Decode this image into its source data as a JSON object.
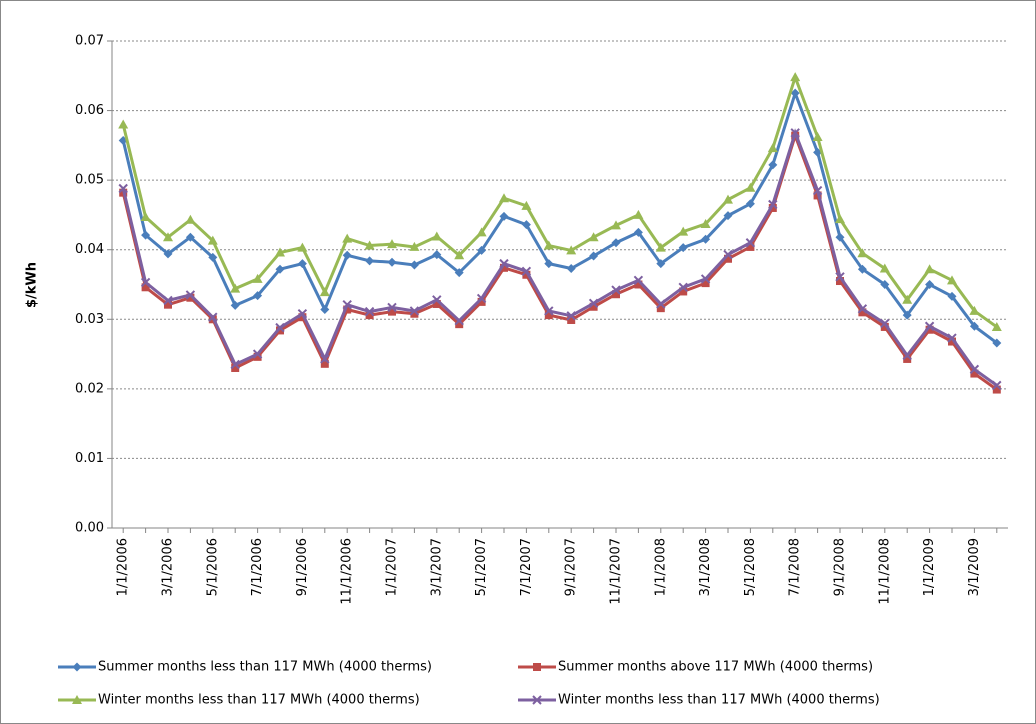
{
  "chart_data": {
    "type": "line",
    "y_label": "$/kWh",
    "categories": [
      "1/1/2006",
      null,
      "3/1/2006",
      null,
      "5/1/2006",
      null,
      "7/1/2006",
      null,
      "9/1/2006",
      null,
      "11/1/2006",
      null,
      "1/1/2007",
      null,
      "3/1/2007",
      null,
      "5/1/2007",
      null,
      "7/1/2007",
      null,
      "9/1/2007",
      null,
      "11/1/2007",
      null,
      "1/1/2008",
      null,
      "3/1/2008",
      null,
      "5/1/2008",
      null,
      "7/1/2008",
      null,
      "9/1/2008",
      null,
      "11/1/2008",
      null,
      "1/1/2009",
      null,
      "3/1/2009",
      null
    ],
    "ylim": [
      0,
      0.07
    ],
    "yticks": [
      {
        "value": 0,
        "label": "0.00"
      },
      0.01,
      0.02,
      0.03,
      0.04,
      0.05,
      0.06,
      0.07
    ],
    "grid": true,
    "legend": "bottom",
    "series": [
      {
        "name": "Summer months less than 117 MWh (4000 therms)",
        "color": "#4a7ebb",
        "marker": "diamond",
        "values": [
          0.0557,
          0.0421,
          0.0394,
          0.0418,
          0.0389,
          0.032,
          0.0334,
          0.0372,
          0.038,
          0.0314,
          0.0392,
          0.0384,
          0.0382,
          0.0378,
          0.0393,
          0.0367,
          0.0399,
          0.0448,
          0.0436,
          0.038,
          0.0373,
          0.0391,
          0.041,
          0.0425,
          0.038,
          0.0403,
          0.0415,
          0.0449,
          0.0466,
          0.0522,
          0.0625,
          0.054,
          0.0418,
          0.0372,
          0.035,
          0.0306,
          0.035,
          0.0333,
          0.029,
          0.0266
        ]
      },
      {
        "name": "Summer months above 117 MWh (4000 therms)",
        "color": "#be4b48",
        "marker": "square",
        "values": [
          0.0482,
          0.0346,
          0.0321,
          0.0331,
          0.03,
          0.023,
          0.0246,
          0.0284,
          0.0303,
          0.0236,
          0.0314,
          0.0306,
          0.0311,
          0.0308,
          0.0322,
          0.0293,
          0.0325,
          0.0374,
          0.0364,
          0.0306,
          0.0299,
          0.0318,
          0.0336,
          0.035,
          0.0316,
          0.034,
          0.0352,
          0.0387,
          0.0404,
          0.046,
          0.0564,
          0.0478,
          0.0355,
          0.031,
          0.0289,
          0.0243,
          0.0285,
          0.0268,
          0.0222,
          0.0199
        ]
      },
      {
        "name": "Winter months less than 117 MWh (4000 therms)",
        "color": "#98b954",
        "marker": "triangle",
        "values": [
          0.058,
          0.0447,
          0.0418,
          0.0443,
          0.0413,
          0.0344,
          0.0358,
          0.0396,
          0.0403,
          0.0339,
          0.0416,
          0.0406,
          0.0408,
          0.0404,
          0.0419,
          0.0392,
          0.0425,
          0.0474,
          0.0463,
          0.0406,
          0.0399,
          0.0418,
          0.0435,
          0.045,
          0.0403,
          0.0426,
          0.0437,
          0.0472,
          0.0489,
          0.0546,
          0.0648,
          0.0562,
          0.0444,
          0.0395,
          0.0373,
          0.0328,
          0.0372,
          0.0356,
          0.0312,
          0.0289
        ]
      },
      {
        "name": "Winter months less than 117 MWh (4000 therms)",
        "color": "#7d60a0",
        "marker": "x",
        "values": [
          0.0488,
          0.0353,
          0.0327,
          0.0335,
          0.0303,
          0.0235,
          0.025,
          0.0288,
          0.0308,
          0.0243,
          0.0321,
          0.0311,
          0.0317,
          0.0312,
          0.0328,
          0.0298,
          0.033,
          0.038,
          0.0369,
          0.0312,
          0.0305,
          0.0323,
          0.0342,
          0.0356,
          0.0322,
          0.0346,
          0.0358,
          0.0393,
          0.041,
          0.0465,
          0.0568,
          0.0485,
          0.0361,
          0.0315,
          0.0294,
          0.0248,
          0.029,
          0.0273,
          0.0228,
          0.0205
        ]
      }
    ]
  }
}
